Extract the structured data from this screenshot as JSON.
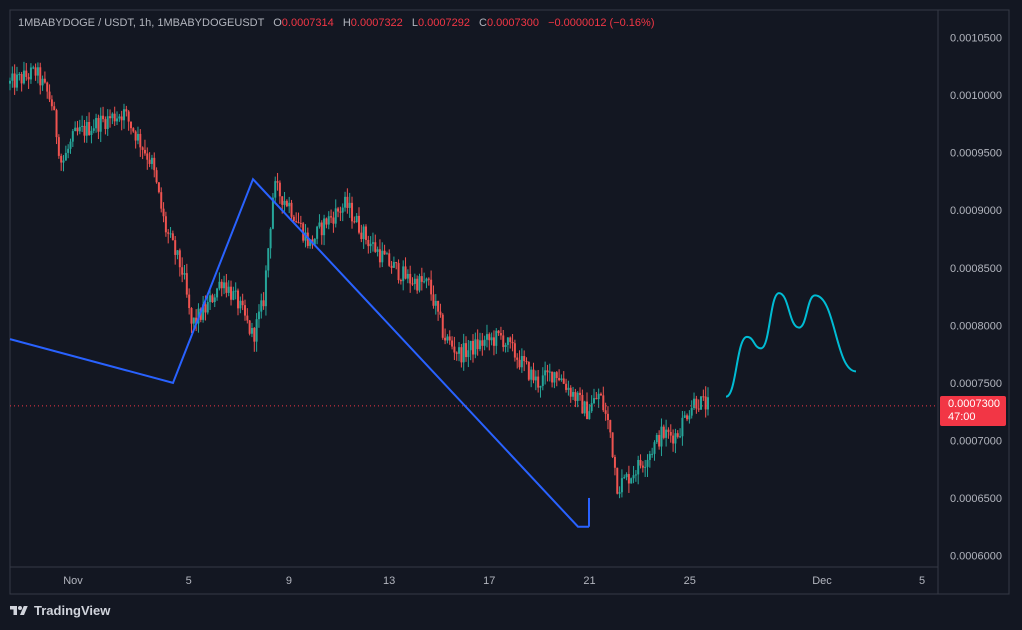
{
  "header": {
    "symbol": "1MBABYDOGE / USDT, 1h, 1MBABYDOGEUSDT",
    "open_label": "O",
    "open_value": "0.0007314",
    "high_label": "H",
    "high_value": "0.0007322",
    "low_label": "L",
    "low_value": "0.0007292",
    "close_label": "C",
    "close_value": "0.0007300",
    "change": "−0.0000012 (−0.16%)"
  },
  "last_price": {
    "value": "0.0007300",
    "countdown": "47:00"
  },
  "footer": {
    "brand": "TradingView"
  },
  "colors": {
    "background": "#131722",
    "up": "#26a69a",
    "down": "#ef5350",
    "zigzag": "#2962ff",
    "projection": "#00bcd4",
    "badge": "#f23645"
  },
  "chart_data": {
    "type": "candlestick",
    "y_axis_ticks": [
      "0.0010500",
      "0.0010000",
      "0.0009500",
      "0.0009000",
      "0.0008500",
      "0.0008000",
      "0.0007500",
      "0.0007000",
      "0.0006500",
      "0.0006000"
    ],
    "x_axis_ticks": [
      "Nov",
      "5",
      "9",
      "13",
      "17",
      "21",
      "25",
      "Dec",
      "5"
    ],
    "ylim": [
      0.00059,
      0.001074
    ],
    "price_path": [
      [
        0.0,
        0.00101
      ],
      [
        1.0,
        0.00102
      ],
      [
        1.6,
        0.000995
      ],
      [
        2.0,
        0.00094
      ],
      [
        2.5,
        0.000965
      ],
      [
        3.3,
        0.000975
      ],
      [
        4.4,
        0.000985
      ],
      [
        4.9,
        0.000965
      ],
      [
        5.5,
        0.00094
      ],
      [
        6.0,
        0.000885
      ],
      [
        6.7,
        0.000845
      ],
      [
        7.0,
        0.0008
      ],
      [
        7.6,
        0.000815
      ],
      [
        8.2,
        0.00084
      ],
      [
        8.8,
        0.00082
      ],
      [
        9.4,
        0.00079
      ],
      [
        9.8,
        0.00082
      ],
      [
        10.2,
        0.00092
      ],
      [
        10.8,
        0.000905
      ],
      [
        11.6,
        0.00087
      ],
      [
        12.2,
        0.00089
      ],
      [
        13.0,
        0.000905
      ],
      [
        13.8,
        0.000875
      ],
      [
        14.6,
        0.000855
      ],
      [
        15.4,
        0.00084
      ],
      [
        16.2,
        0.000835
      ],
      [
        16.8,
        0.00079
      ],
      [
        17.4,
        0.000775
      ],
      [
        18.3,
        0.000785
      ],
      [
        19.0,
        0.00079
      ],
      [
        19.7,
        0.00077
      ],
      [
        20.4,
        0.00075
      ],
      [
        21.1,
        0.00076
      ],
      [
        21.8,
        0.00074
      ],
      [
        22.3,
        0.000725
      ],
      [
        22.8,
        0.00074
      ],
      [
        23.2,
        0.00071
      ],
      [
        23.5,
        0.00066
      ],
      [
        24.0,
        0.00067
      ],
      [
        24.6,
        0.000685
      ],
      [
        25.2,
        0.000705
      ],
      [
        25.8,
        0.000705
      ],
      [
        26.2,
        0.000725
      ],
      [
        26.5,
        0.000735
      ],
      [
        27.0,
        0.00073
      ]
    ],
    "zigzag": [
      {
        "x": -2.5,
        "y": 0.000788
      },
      {
        "x": 4.0,
        "y": 0.00075
      },
      {
        "x": 7.0,
        "y": 0.000927
      },
      {
        "x": 21.4,
        "y": 0.000625
      },
      {
        "x": 21.6,
        "y": 0.000625
      }
    ],
    "projection": [
      [
        28.0,
        0.000738
      ],
      [
        29.0,
        0.00079
      ],
      [
        29.6,
        0.00078
      ],
      [
        30.4,
        0.000828
      ],
      [
        31.1,
        0.000798
      ],
      [
        31.8,
        0.000826
      ],
      [
        32.8,
        0.00076
      ]
    ],
    "last_price_line": 0.00073
  }
}
